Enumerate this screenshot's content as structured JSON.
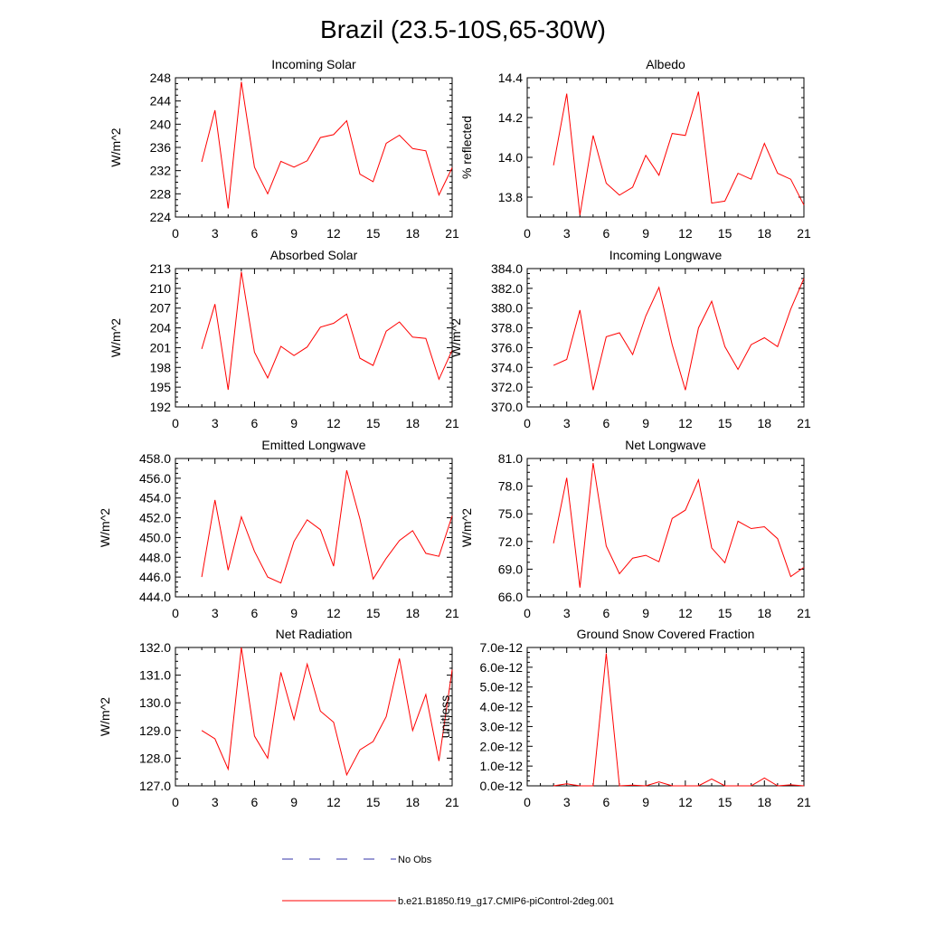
{
  "figure_title": "Brazil (23.5-10S,65-30W)",
  "colors": {
    "series": "#ff0000",
    "obs": "#3333aa",
    "axis": "#000000"
  },
  "legend": [
    {
      "label": "No Obs",
      "style": "dashed",
      "color": "#3333aa"
    },
    {
      "label": "b.e21.B1850.f19_g17.CMIP6-piControl-2deg.001",
      "style": "solid",
      "color": "#ff0000"
    }
  ],
  "chart_data": [
    {
      "type": "line",
      "title": "Incoming Solar",
      "ylabel": "W/m^2",
      "xlim": [
        0,
        21
      ],
      "xticks": [
        "0",
        "3",
        "6",
        "9",
        "12",
        "15",
        "18",
        "21"
      ],
      "ylim": [
        224,
        248
      ],
      "yticks": [
        "224",
        "228",
        "232",
        "236",
        "240",
        "244",
        "248"
      ],
      "x": [
        2,
        3,
        4,
        5,
        6,
        7,
        8,
        9,
        10,
        11,
        12,
        13,
        14,
        15,
        16,
        17,
        18,
        19,
        20,
        21
      ],
      "values": [
        233.5,
        242.4,
        225.5,
        247.3,
        232.6,
        228.0,
        233.6,
        232.6,
        233.7,
        237.7,
        238.2,
        240.6,
        231.4,
        230.1,
        236.7,
        238.1,
        235.8,
        235.4,
        227.8,
        232.5
      ]
    },
    {
      "type": "line",
      "title": "Albedo",
      "ylabel": "% reflected",
      "xlim": [
        0,
        21
      ],
      "xticks": [
        "0",
        "3",
        "6",
        "9",
        "12",
        "15",
        "18",
        "21"
      ],
      "ylim": [
        13.7,
        14.4
      ],
      "yticks": [
        "13.8",
        "14.0",
        "14.2",
        "14.4"
      ],
      "x": [
        2,
        3,
        4,
        5,
        6,
        7,
        8,
        9,
        10,
        11,
        12,
        13,
        14,
        15,
        16,
        17,
        18,
        19,
        20,
        21
      ],
      "values": [
        13.96,
        14.32,
        13.71,
        14.11,
        13.87,
        13.81,
        13.85,
        14.01,
        13.91,
        14.12,
        14.11,
        14.33,
        13.77,
        13.78,
        13.92,
        13.89,
        14.07,
        13.92,
        13.89,
        13.76
      ]
    },
    {
      "type": "line",
      "title": "Absorbed Solar",
      "ylabel": "W/m^2",
      "xlim": [
        0,
        21
      ],
      "xticks": [
        "0",
        "3",
        "6",
        "9",
        "12",
        "15",
        "18",
        "21"
      ],
      "ylim": [
        192,
        213
      ],
      "yticks": [
        "192",
        "195",
        "198",
        "201",
        "204",
        "207",
        "210",
        "213"
      ],
      "x": [
        2,
        3,
        4,
        5,
        6,
        7,
        8,
        9,
        10,
        11,
        12,
        13,
        14,
        15,
        16,
        17,
        18,
        19,
        20,
        21
      ],
      "values": [
        200.8,
        207.6,
        194.6,
        212.5,
        200.3,
        196.4,
        201.2,
        199.8,
        201.1,
        204.1,
        204.7,
        206.1,
        199.4,
        198.3,
        203.5,
        204.9,
        202.6,
        202.4,
        196.2,
        200.6
      ]
    },
    {
      "type": "line",
      "title": "Incoming Longwave",
      "ylabel": "W/m^2",
      "xlim": [
        0,
        21
      ],
      "xticks": [
        "0",
        "3",
        "6",
        "9",
        "12",
        "15",
        "18",
        "21"
      ],
      "ylim": [
        370.0,
        384.0
      ],
      "yticks": [
        "370.0",
        "372.0",
        "374.0",
        "376.0",
        "378.0",
        "380.0",
        "382.0",
        "384.0"
      ],
      "x": [
        2,
        3,
        4,
        5,
        6,
        7,
        8,
        9,
        10,
        11,
        12,
        13,
        14,
        15,
        16,
        17,
        18,
        19,
        20,
        21
      ],
      "values": [
        374.2,
        374.8,
        379.8,
        371.7,
        377.1,
        377.5,
        375.3,
        379.2,
        382.1,
        376.3,
        371.7,
        378.0,
        380.7,
        376.1,
        373.8,
        376.3,
        377.0,
        376.1,
        379.9,
        383.0
      ]
    },
    {
      "type": "line",
      "title": "Emitted Longwave",
      "ylabel": "W/m^2",
      "xlim": [
        0,
        21
      ],
      "xticks": [
        "0",
        "3",
        "6",
        "9",
        "12",
        "15",
        "18",
        "21"
      ],
      "ylim": [
        444.0,
        458.0
      ],
      "yticks": [
        "444.0",
        "446.0",
        "448.0",
        "450.0",
        "452.0",
        "454.0",
        "456.0",
        "458.0"
      ],
      "x": [
        2,
        3,
        4,
        5,
        6,
        7,
        8,
        9,
        10,
        11,
        12,
        13,
        14,
        15,
        16,
        17,
        18,
        19,
        20,
        21
      ],
      "values": [
        446.0,
        453.8,
        446.7,
        452.1,
        448.6,
        446.0,
        445.4,
        449.6,
        451.8,
        450.8,
        447.1,
        456.8,
        451.9,
        445.8,
        447.9,
        449.7,
        450.7,
        448.4,
        448.1,
        452.2
      ]
    },
    {
      "type": "line",
      "title": "Net Longwave",
      "ylabel": "W/m^2",
      "xlim": [
        0,
        21
      ],
      "xticks": [
        "0",
        "3",
        "6",
        "9",
        "12",
        "15",
        "18",
        "21"
      ],
      "ylim": [
        66.0,
        81.0
      ],
      "yticks": [
        "66.0",
        "69.0",
        "72.0",
        "75.0",
        "78.0",
        "81.0"
      ],
      "x": [
        2,
        3,
        4,
        5,
        6,
        7,
        8,
        9,
        10,
        11,
        12,
        13,
        14,
        15,
        16,
        17,
        18,
        19,
        20,
        21
      ],
      "values": [
        71.8,
        78.9,
        67.0,
        80.5,
        71.5,
        68.5,
        70.2,
        70.5,
        69.8,
        74.5,
        75.4,
        78.7,
        71.3,
        69.7,
        74.2,
        73.4,
        73.6,
        72.3,
        68.2,
        69.2
      ]
    },
    {
      "type": "line",
      "title": "Net Radiation",
      "ylabel": "W/m^2",
      "xlim": [
        0,
        21
      ],
      "xticks": [
        "0",
        "3",
        "6",
        "9",
        "12",
        "15",
        "18",
        "21"
      ],
      "ylim": [
        127.0,
        132.0
      ],
      "yticks": [
        "127.0",
        "128.0",
        "129.0",
        "130.0",
        "131.0",
        "132.0"
      ],
      "x": [
        2,
        3,
        4,
        5,
        6,
        7,
        8,
        9,
        10,
        11,
        12,
        13,
        14,
        15,
        16,
        17,
        18,
        19,
        20,
        21
      ],
      "values": [
        129.0,
        128.7,
        127.6,
        132.0,
        128.8,
        128.0,
        131.1,
        129.4,
        131.4,
        129.7,
        129.3,
        127.4,
        128.3,
        128.6,
        129.5,
        131.6,
        129.0,
        130.3,
        127.9,
        131.2
      ]
    },
    {
      "type": "line",
      "title": "Ground Snow Covered Fraction",
      "ylabel": "unitless",
      "xlim": [
        0,
        21
      ],
      "xticks": [
        "0",
        "3",
        "6",
        "9",
        "12",
        "15",
        "18",
        "21"
      ],
      "ylim": [
        0,
        7e-12
      ],
      "yticks": [
        "0.0e-12",
        "1.0e-12",
        "2.0e-12",
        "3.0e-12",
        "4.0e-12",
        "5.0e-12",
        "6.0e-12",
        "7.0e-12"
      ],
      "x": [
        2,
        3,
        4,
        5,
        6,
        7,
        8,
        9,
        10,
        11,
        12,
        13,
        14,
        15,
        16,
        17,
        18,
        19,
        20,
        21
      ],
      "values": [
        0,
        1e-13,
        0,
        0,
        6.7e-12,
        0,
        3e-14,
        0,
        2e-13,
        0,
        0,
        0,
        3.5e-13,
        0,
        0,
        0,
        4e-13,
        0,
        5e-14,
        0
      ]
    }
  ]
}
